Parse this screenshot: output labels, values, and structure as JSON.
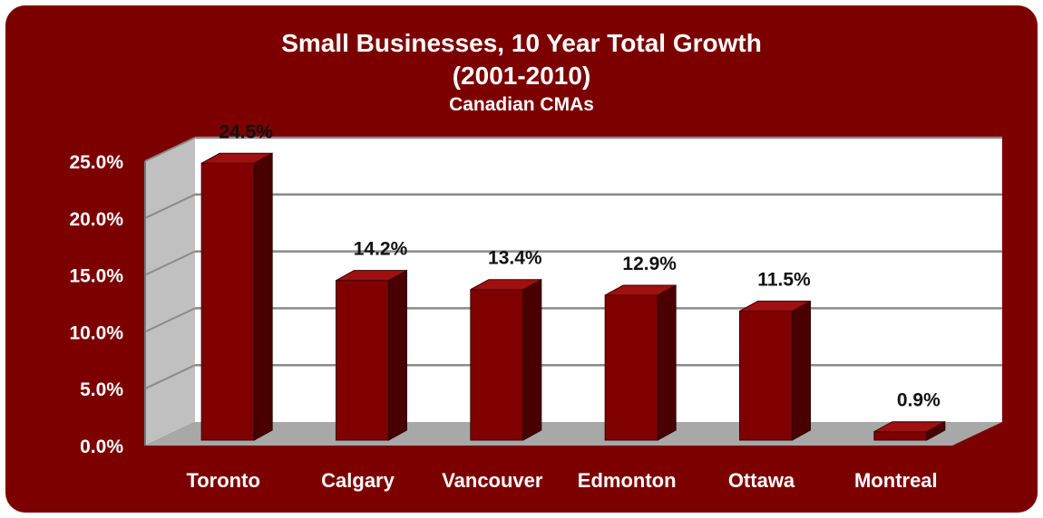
{
  "chart_data": {
    "type": "bar",
    "title": "Small Businesses, 10 Year Total Growth",
    "subtitle": "(2001-2010)",
    "subtitle2": "Canadian CMAs",
    "categories": [
      "Toronto",
      "Calgary",
      "Vancouver",
      "Edmonton",
      "Ottawa",
      "Montreal"
    ],
    "values": [
      24.5,
      14.2,
      13.4,
      12.9,
      11.5,
      0.9
    ],
    "data_labels": [
      "24.5%",
      "14.2%",
      "13.4%",
      "12.9%",
      "11.5%",
      "0.9%"
    ],
    "yticks": [
      "0.0%",
      "5.0%",
      "10.0%",
      "15.0%",
      "20.0%",
      "25.0%"
    ],
    "ylim": [
      0,
      25
    ],
    "grid": true,
    "style": "3d",
    "colors": {
      "background": "#7c0000",
      "bar_front": "#800000",
      "bar_side": "#4a0000",
      "bar_top": "#a01010",
      "plot_area": "#ffffff",
      "wall_side": "#c0c0c0",
      "floor": "#a8a8a8",
      "text": "#ffffff",
      "data_label": "#111111"
    }
  }
}
